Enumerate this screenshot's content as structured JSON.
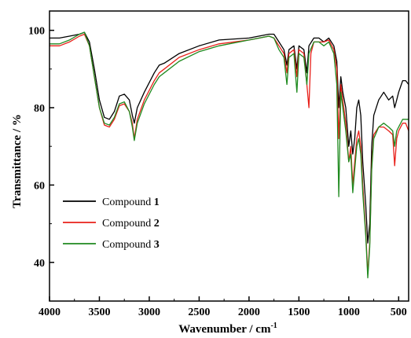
{
  "chart_data": {
    "type": "line",
    "xlabel": "Wavenumber / cm",
    "xlabel_sup": "-1",
    "ylabel": "Transmittance / %",
    "xlim": [
      4000,
      400
    ],
    "ylim": [
      30,
      105
    ],
    "x_ticks": [
      4000,
      3500,
      3000,
      2500,
      2000,
      1500,
      1000,
      500
    ],
    "y_ticks": [
      40,
      60,
      80,
      100
    ],
    "grid": false,
    "legend_position": "center-left",
    "legend": [
      {
        "prefix": "Compound ",
        "number": "1",
        "color": "#000000"
      },
      {
        "prefix": "Compound ",
        "number": "2",
        "color": "#e8201a"
      },
      {
        "prefix": "Compound ",
        "number": "3",
        "color": "#1f8a1f"
      }
    ],
    "series": [
      {
        "name": "Compound 1",
        "color": "#000000",
        "points": [
          [
            4000,
            98
          ],
          [
            3900,
            98
          ],
          [
            3800,
            98.5
          ],
          [
            3700,
            99
          ],
          [
            3650,
            99.5
          ],
          [
            3600,
            97
          ],
          [
            3550,
            90
          ],
          [
            3500,
            82
          ],
          [
            3450,
            77.5
          ],
          [
            3400,
            77
          ],
          [
            3350,
            79
          ],
          [
            3300,
            83
          ],
          [
            3250,
            83.5
          ],
          [
            3200,
            82
          ],
          [
            3170,
            78
          ],
          [
            3150,
            76
          ],
          [
            3120,
            80
          ],
          [
            3050,
            84
          ],
          [
            2950,
            89
          ],
          [
            2900,
            91
          ],
          [
            2850,
            91.5
          ],
          [
            2700,
            94
          ],
          [
            2500,
            96
          ],
          [
            2300,
            97.5
          ],
          [
            2000,
            98
          ],
          [
            1800,
            99
          ],
          [
            1750,
            99
          ],
          [
            1700,
            97
          ],
          [
            1650,
            95
          ],
          [
            1620,
            91
          ],
          [
            1600,
            95
          ],
          [
            1550,
            96
          ],
          [
            1520,
            90
          ],
          [
            1500,
            96
          ],
          [
            1450,
            95
          ],
          [
            1420,
            89
          ],
          [
            1400,
            96
          ],
          [
            1350,
            98
          ],
          [
            1300,
            98
          ],
          [
            1250,
            97
          ],
          [
            1200,
            98
          ],
          [
            1150,
            96
          ],
          [
            1120,
            92
          ],
          [
            1100,
            80
          ],
          [
            1080,
            88
          ],
          [
            1060,
            84
          ],
          [
            1030,
            80
          ],
          [
            1000,
            70
          ],
          [
            980,
            74
          ],
          [
            960,
            68
          ],
          [
            940,
            72
          ],
          [
            920,
            80
          ],
          [
            900,
            82
          ],
          [
            880,
            78
          ],
          [
            860,
            66
          ],
          [
            830,
            55
          ],
          [
            810,
            45
          ],
          [
            790,
            50
          ],
          [
            770,
            70
          ],
          [
            750,
            78
          ],
          [
            700,
            82
          ],
          [
            650,
            84
          ],
          [
            600,
            82
          ],
          [
            560,
            83
          ],
          [
            540,
            80
          ],
          [
            520,
            82
          ],
          [
            500,
            84
          ],
          [
            460,
            87
          ],
          [
            430,
            87
          ],
          [
            400,
            86
          ]
        ]
      },
      {
        "name": "Compound 2",
        "color": "#e8201a",
        "points": [
          [
            4000,
            96
          ],
          [
            3900,
            96
          ],
          [
            3800,
            97
          ],
          [
            3700,
            98.5
          ],
          [
            3650,
            99
          ],
          [
            3600,
            96
          ],
          [
            3550,
            88
          ],
          [
            3500,
            80
          ],
          [
            3450,
            75.5
          ],
          [
            3400,
            75
          ],
          [
            3350,
            77
          ],
          [
            3300,
            80.5
          ],
          [
            3250,
            81
          ],
          [
            3200,
            79
          ],
          [
            3170,
            76
          ],
          [
            3150,
            72
          ],
          [
            3120,
            77
          ],
          [
            3050,
            82
          ],
          [
            2950,
            87
          ],
          [
            2900,
            89
          ],
          [
            2850,
            90
          ],
          [
            2700,
            93
          ],
          [
            2500,
            95
          ],
          [
            2300,
            96.5
          ],
          [
            2000,
            97.5
          ],
          [
            1800,
            98.5
          ],
          [
            1750,
            98
          ],
          [
            1700,
            96
          ],
          [
            1650,
            94
          ],
          [
            1620,
            89
          ],
          [
            1600,
            94
          ],
          [
            1550,
            95
          ],
          [
            1520,
            88
          ],
          [
            1500,
            95
          ],
          [
            1450,
            94
          ],
          [
            1420,
            86
          ],
          [
            1400,
            80
          ],
          [
            1380,
            94
          ],
          [
            1350,
            97
          ],
          [
            1300,
            97
          ],
          [
            1250,
            97
          ],
          [
            1200,
            97.5
          ],
          [
            1150,
            95
          ],
          [
            1120,
            90
          ],
          [
            1100,
            72
          ],
          [
            1080,
            86
          ],
          [
            1060,
            82
          ],
          [
            1030,
            76
          ],
          [
            1000,
            66
          ],
          [
            980,
            70
          ],
          [
            960,
            60
          ],
          [
            940,
            66
          ],
          [
            920,
            72
          ],
          [
            900,
            74
          ],
          [
            880,
            70
          ],
          [
            860,
            60
          ],
          [
            830,
            48
          ],
          [
            810,
            37
          ],
          [
            790,
            45
          ],
          [
            770,
            65
          ],
          [
            750,
            73
          ],
          [
            700,
            75
          ],
          [
            650,
            75
          ],
          [
            600,
            74
          ],
          [
            560,
            73
          ],
          [
            540,
            65
          ],
          [
            520,
            72
          ],
          [
            500,
            74
          ],
          [
            460,
            76
          ],
          [
            430,
            76
          ],
          [
            400,
            74
          ]
        ]
      },
      {
        "name": "Compound 3",
        "color": "#1f8a1f",
        "points": [
          [
            4000,
            96.5
          ],
          [
            3900,
            96.5
          ],
          [
            3800,
            97.5
          ],
          [
            3700,
            99
          ],
          [
            3650,
            99.5
          ],
          [
            3600,
            96
          ],
          [
            3550,
            88
          ],
          [
            3500,
            80
          ],
          [
            3450,
            76
          ],
          [
            3400,
            75.5
          ],
          [
            3350,
            77.5
          ],
          [
            3300,
            81
          ],
          [
            3250,
            81.5
          ],
          [
            3200,
            79
          ],
          [
            3170,
            75
          ],
          [
            3150,
            71.5
          ],
          [
            3120,
            76
          ],
          [
            3050,
            81
          ],
          [
            2950,
            86
          ],
          [
            2900,
            88
          ],
          [
            2850,
            89
          ],
          [
            2700,
            92
          ],
          [
            2500,
            94.5
          ],
          [
            2300,
            96
          ],
          [
            2000,
            97.5
          ],
          [
            1800,
            98.5
          ],
          [
            1750,
            98
          ],
          [
            1700,
            95
          ],
          [
            1650,
            93
          ],
          [
            1620,
            86
          ],
          [
            1600,
            93
          ],
          [
            1550,
            94
          ],
          [
            1520,
            84
          ],
          [
            1500,
            94
          ],
          [
            1450,
            93
          ],
          [
            1420,
            86
          ],
          [
            1400,
            94
          ],
          [
            1350,
            97
          ],
          [
            1300,
            97
          ],
          [
            1250,
            96
          ],
          [
            1200,
            97
          ],
          [
            1150,
            94
          ],
          [
            1120,
            86
          ],
          [
            1100,
            57
          ],
          [
            1080,
            84
          ],
          [
            1060,
            80
          ],
          [
            1030,
            74
          ],
          [
            1000,
            66
          ],
          [
            980,
            68
          ],
          [
            960,
            58
          ],
          [
            940,
            64
          ],
          [
            920,
            70
          ],
          [
            900,
            72
          ],
          [
            880,
            68
          ],
          [
            860,
            58
          ],
          [
            830,
            47
          ],
          [
            810,
            36
          ],
          [
            790,
            44
          ],
          [
            770,
            64
          ],
          [
            750,
            72
          ],
          [
            700,
            75
          ],
          [
            650,
            76
          ],
          [
            600,
            75
          ],
          [
            560,
            74
          ],
          [
            540,
            70
          ],
          [
            520,
            74
          ],
          [
            500,
            75
          ],
          [
            460,
            77
          ],
          [
            430,
            77
          ],
          [
            400,
            77
          ]
        ]
      }
    ]
  }
}
